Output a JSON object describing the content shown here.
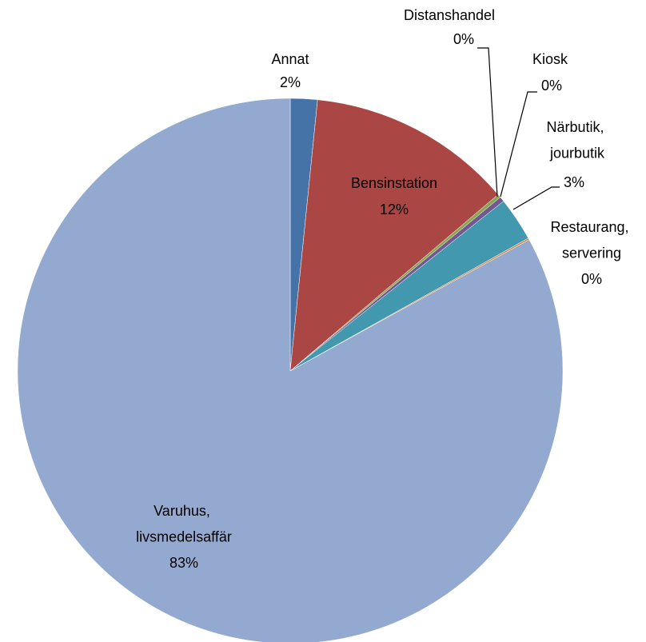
{
  "chart_data": {
    "type": "pie",
    "categories": [
      "Annat",
      "Bensinstation",
      "Distanshandel",
      "Kiosk",
      "Närbutik, jourbutik",
      "Restaurang, servering",
      "Varuhus, livsmedelsaffär"
    ],
    "values": [
      1.6,
      12.2,
      0.2,
      0.3,
      2.6,
      0.1,
      83.0
    ],
    "value_labels": [
      "2%",
      "12%",
      "0%",
      "0%",
      "3%",
      "0%",
      "83%"
    ],
    "colors": [
      "#4572a7",
      "#aa4643",
      "#89a54e",
      "#71588f",
      "#4198af",
      "#db843d",
      "#93a9cf"
    ]
  }
}
